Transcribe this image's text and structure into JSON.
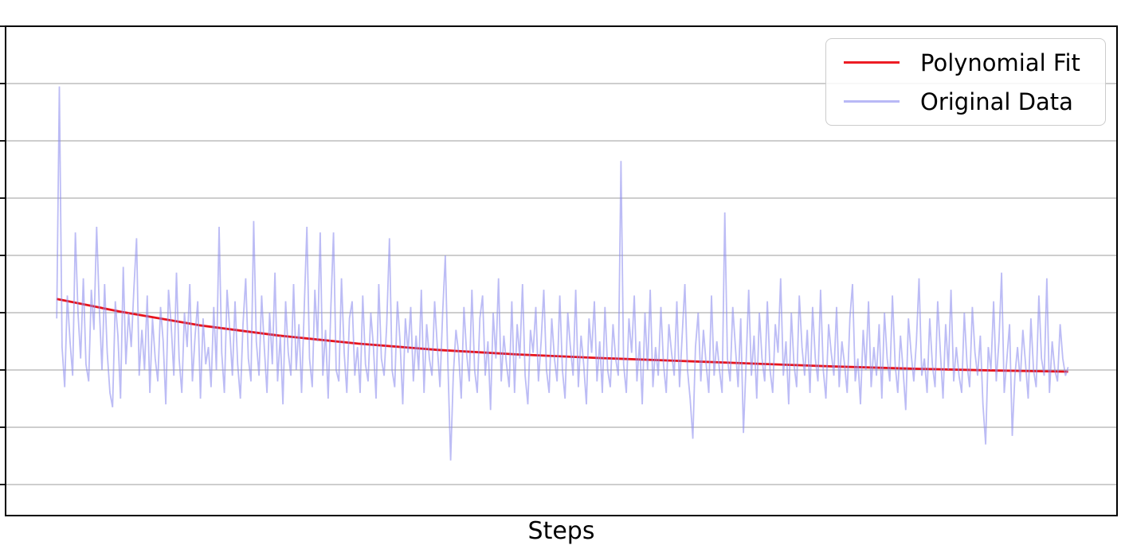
{
  "chart_data": {
    "type": "line",
    "title": "",
    "xlabel": "Steps",
    "ylabel": "",
    "grid": true,
    "background_color": "#ffffff",
    "spine_color": "#000000",
    "grid_color": "#b0b0b0",
    "tick_color": "#1a1a1a",
    "x_axis": {
      "label": "Steps",
      "tick_labels_visible": false
    },
    "y_axis": {
      "tick_labels_visible": false,
      "units": "unlabeled; gridline spacing = 1 unit",
      "gridline_values": [
        1,
        2,
        3,
        4,
        5,
        6,
        7,
        8
      ],
      "tick_values": [
        1,
        2,
        3,
        4,
        5,
        6,
        7,
        8,
        9
      ]
    },
    "ylim": [
      0.458,
      9.0
    ],
    "legend": {
      "position": "upper right",
      "entries": [
        "Polynomial Fit",
        "Original Data"
      ]
    },
    "series": [
      {
        "name": "Polynomial Fit",
        "color": "#e8131b",
        "legend_color": "#ed1c24",
        "line_width": 2.8,
        "opacity": 1,
        "points_x_fraction_of_span": [
          0,
          0.062,
          0.141,
          0.22,
          0.298,
          0.377,
          0.456,
          0.535,
          0.614,
          0.692,
          0.771,
          0.85,
          0.929,
          1
        ],
        "points_values": [
          4.24,
          4.02,
          3.78,
          3.6,
          3.46,
          3.35,
          3.27,
          3.21,
          3.16,
          3.11,
          3.06,
          3.02,
          2.99,
          2.97
        ]
      },
      {
        "name": "Original Data",
        "color": "#8f8fee",
        "legend_color": "#b9b9f6",
        "line_width": 1.8,
        "opacity": 0.6,
        "x_span_fraction": [
          0.046,
          0.956
        ],
        "values": [
          3.9,
          7.95,
          3.4,
          2.7,
          4.3,
          3.5,
          2.9,
          5.4,
          4.0,
          3.2,
          4.6,
          3.1,
          2.8,
          4.4,
          3.7,
          5.5,
          4.1,
          3.0,
          4.5,
          3.3,
          2.6,
          2.35,
          4.2,
          3.6,
          2.5,
          4.8,
          3.1,
          4.0,
          3.4,
          4.4,
          5.3,
          2.9,
          3.7,
          3.0,
          4.3,
          2.6,
          3.9,
          3.2,
          2.8,
          4.1,
          3.5,
          2.4,
          4.4,
          3.8,
          2.9,
          4.7,
          3.2,
          2.6,
          4.0,
          3.4,
          4.5,
          2.8,
          3.6,
          4.2,
          2.5,
          3.9,
          3.1,
          3.4,
          2.7,
          4.1,
          3.0,
          5.5,
          3.3,
          2.6,
          4.4,
          3.7,
          2.9,
          4.2,
          3.1,
          2.5,
          3.8,
          4.6,
          3.2,
          2.8,
          5.6,
          3.5,
          2.9,
          4.3,
          3.4,
          2.6,
          4.0,
          3.1,
          4.7,
          2.8,
          3.6,
          2.4,
          4.2,
          3.3,
          2.9,
          4.5,
          3.0,
          3.8,
          2.6,
          4.1,
          5.5,
          3.2,
          2.7,
          4.4,
          3.5,
          5.4,
          2.9,
          3.7,
          2.5,
          4.1,
          5.4,
          3.0,
          2.8,
          4.6,
          3.3,
          2.6,
          3.9,
          4.2,
          2.9,
          3.4,
          2.6,
          4.3,
          3.1,
          2.8,
          4.0,
          3.4,
          2.5,
          4.5,
          3.2,
          2.9,
          3.8,
          5.3,
          3.0,
          2.7,
          4.2,
          3.5,
          2.4,
          3.9,
          3.3,
          4.1,
          2.8,
          3.6,
          3.0,
          4.4,
          2.6,
          3.8,
          3.2,
          2.9,
          4.2,
          3.4,
          2.7,
          4.0,
          5.0,
          3.1,
          1.42,
          2.9,
          3.7,
          3.3,
          2.5,
          4.1,
          3.3,
          2.8,
          4.4,
          3.0,
          2.6,
          3.9,
          4.3,
          2.9,
          3.5,
          2.3,
          4.0,
          3.2,
          4.6,
          2.8,
          3.6,
          3.1,
          2.7,
          4.2,
          2.6,
          3.8,
          3.2,
          4.5,
          2.9,
          2.4,
          3.7,
          3.3,
          4.1,
          2.8,
          3.5,
          4.4,
          3.0,
          2.6,
          3.9,
          3.2,
          2.8,
          4.3,
          3.0,
          2.5,
          4.0,
          3.4,
          2.9,
          4.4,
          2.7,
          3.6,
          3.1,
          2.4,
          3.9,
          3.3,
          4.2,
          2.8,
          3.5,
          2.6,
          4.1,
          3.0,
          2.7,
          3.8,
          3.2,
          2.9,
          6.65,
          3.1,
          2.6,
          3.9,
          3.3,
          4.3,
          2.8,
          3.5,
          2.4,
          4.0,
          3.0,
          4.4,
          2.7,
          3.4,
          2.9,
          4.1,
          3.1,
          2.6,
          3.8,
          3.3,
          2.9,
          4.2,
          2.7,
          3.6,
          4.5,
          3.0,
          2.5,
          1.8,
          3.4,
          4.0,
          2.8,
          3.7,
          3.1,
          2.6,
          4.3,
          2.9,
          3.5,
          3.0,
          2.6,
          5.75,
          3.2,
          2.8,
          4.1,
          3.4,
          2.7,
          3.9,
          1.9,
          3.1,
          4.4,
          2.9,
          3.6,
          2.5,
          4.0,
          3.2,
          2.8,
          4.2,
          3.0,
          2.6,
          3.8,
          3.3,
          4.6,
          2.9,
          3.5,
          2.4,
          4.0,
          3.1,
          2.7,
          4.3,
          3.4,
          2.9,
          3.7,
          2.6,
          4.1,
          3.2,
          2.8,
          4.4,
          3.0,
          2.5,
          3.8,
          3.3,
          2.9,
          4.1,
          2.7,
          3.5,
          3.1,
          2.6,
          3.9,
          4.5,
          2.8,
          3.2,
          2.4,
          3.7,
          3.0,
          4.2,
          2.7,
          3.4,
          2.9,
          3.8,
          2.5,
          4.0,
          3.2,
          2.8,
          4.3,
          3.1,
          2.6,
          3.6,
          3.0,
          2.3,
          3.9,
          3.3,
          2.8,
          3.5,
          4.6,
          2.9,
          3.2,
          2.6,
          3.9,
          3.1,
          2.7,
          4.2,
          3.3,
          2.5,
          3.8,
          3.0,
          4.4,
          2.8,
          3.4,
          2.9,
          2.6,
          4.0,
          3.1,
          2.7,
          4.1,
          3.3,
          2.9,
          3.6,
          2.4,
          1.7,
          3.4,
          3.0,
          4.2,
          2.8,
          3.5,
          4.7,
          2.6,
          3.2,
          3.8,
          1.85,
          2.9,
          3.4,
          2.8,
          3.7,
          3.1,
          2.5,
          3.9,
          3.0,
          2.7,
          4.3,
          3.2,
          2.9,
          4.6,
          2.6,
          3.5,
          3.0,
          2.8,
          3.8,
          3.2,
          2.9,
          3.05
        ]
      }
    ]
  }
}
